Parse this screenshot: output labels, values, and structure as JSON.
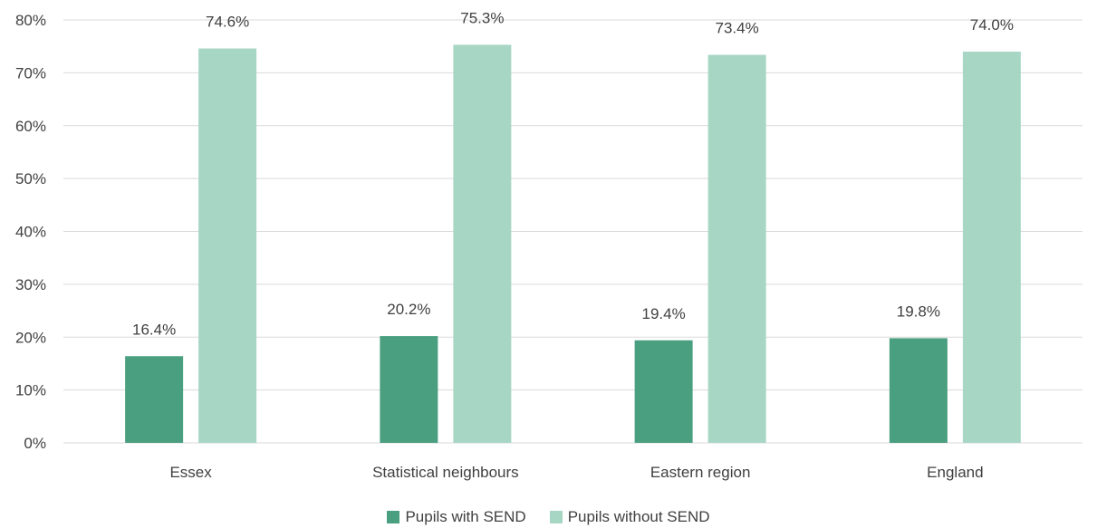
{
  "chart_data": {
    "type": "bar",
    "categories": [
      "Essex",
      "Statistical neighbours",
      "Eastern region",
      "England"
    ],
    "series": [
      {
        "name": "Pupils with SEND",
        "values": [
          16.4,
          20.2,
          19.4,
          19.8
        ],
        "labels": [
          "16.4%",
          "20.2%",
          "19.4%",
          "19.8%"
        ],
        "color": "#4a9f80"
      },
      {
        "name": "Pupils without SEND",
        "values": [
          74.6,
          75.3,
          73.4,
          74.0
        ],
        "labels": [
          "74.6%",
          "75.3%",
          "73.4%",
          "74.0%"
        ],
        "color": "#a8d6c5"
      }
    ],
    "y_ticks": [
      "0%",
      "10%",
      "20%",
      "30%",
      "40%",
      "50%",
      "60%",
      "70%",
      "80%"
    ],
    "ylim": [
      0,
      80
    ],
    "grid": true,
    "legend_position": "bottom",
    "gridline_color": "#d9d9d9"
  }
}
